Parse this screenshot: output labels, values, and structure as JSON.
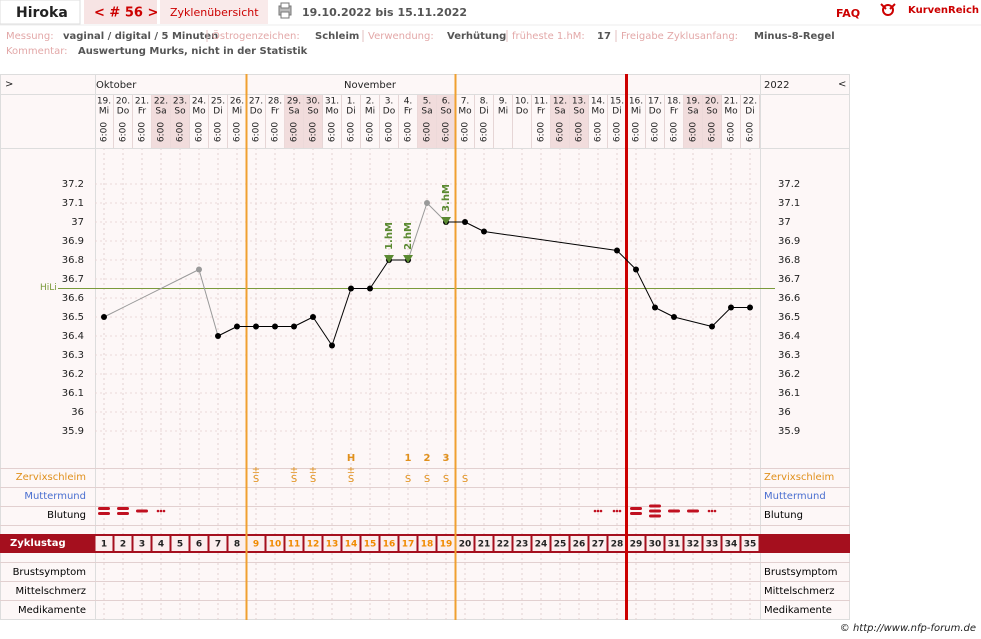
{
  "header": {
    "name": "Hiroka",
    "cycle": "< # 56 >",
    "overview": "Zyklenübersicht",
    "range": "19.10.2022 bis 15.11.2022",
    "faq": "FAQ",
    "brand": "KurvenReich"
  },
  "info": {
    "items": [
      {
        "label": "Messung:",
        "value": "vaginal / digital / 5 Minuten"
      },
      {
        "label": "Östrogenzeichen:",
        "value": "Schleim"
      },
      {
        "label": "Verwendung:",
        "value": "Verhütung"
      },
      {
        "label": "früheste 1.hM:",
        "value": "17"
      },
      {
        "label": "Freigabe Zyklusanfang:",
        "value": "Minus-8-Regel"
      }
    ],
    "comment_label": "Kommentar:",
    "comment": "Auswertung Murks, nicht in der Statistik"
  },
  "chart_data": {
    "type": "line",
    "nav_left": ">",
    "nav_right": "<",
    "year": "2022",
    "months": [
      "Oktober",
      "November"
    ],
    "categories": [
      "19.",
      "20.",
      "21.",
      "22.",
      "23.",
      "24.",
      "25.",
      "26.",
      "27.",
      "28.",
      "29.",
      "30.",
      "31.",
      "1.",
      "2.",
      "3.",
      "4.",
      "5.",
      "6.",
      "7.",
      "8.",
      "9.",
      "10.",
      "11.",
      "12.",
      "13.",
      "14.",
      "15.",
      "16.",
      "17.",
      "18.",
      "19.",
      "20.",
      "21.",
      "22."
    ],
    "weekdays": [
      "Mi",
      "Do",
      "Fr",
      "Sa",
      "So",
      "Mo",
      "Di",
      "Mi",
      "Do",
      "Fr",
      "Sa",
      "So",
      "Mo",
      "Di",
      "Mi",
      "Do",
      "Fr",
      "Sa",
      "So",
      "Mo",
      "Di",
      "Mi",
      "Do",
      "Fr",
      "Sa",
      "So",
      "Mo",
      "Di",
      "Mi",
      "Do",
      "Fr",
      "Sa",
      "So",
      "Mo",
      "Di"
    ],
    "times": [
      "6:00",
      "6:00",
      "6:00",
      "6:00",
      "6:00",
      "6:00",
      "6:00",
      "6:00",
      "6:00",
      "6:00",
      "6:00",
      "6:00",
      "6:00",
      "6:00",
      "6:00",
      "6:00",
      "6:00",
      "6:00",
      "6:00",
      "6:00",
      "6:00",
      null,
      null,
      "6:00",
      "6:00",
      "6:00",
      "6:00",
      "6:00",
      "6:00",
      "6:00",
      "6:00",
      "6:00",
      "6:00",
      "6:00",
      "6:00"
    ],
    "cycle_days": [
      1,
      2,
      3,
      4,
      5,
      6,
      7,
      8,
      9,
      10,
      11,
      12,
      13,
      14,
      15,
      16,
      17,
      18,
      19,
      20,
      21,
      22,
      23,
      24,
      25,
      26,
      27,
      28,
      29,
      30,
      31,
      32,
      33,
      34,
      35
    ],
    "values": [
      36.5,
      null,
      null,
      null,
      null,
      36.75,
      36.4,
      36.45,
      36.45,
      36.45,
      36.45,
      36.5,
      36.35,
      36.65,
      36.65,
      36.8,
      36.8,
      37.1,
      37.0,
      37.0,
      36.95,
      null,
      null,
      null,
      null,
      null,
      null,
      36.85,
      36.75,
      36.55,
      36.5,
      null,
      36.45,
      36.55,
      36.55
    ],
    "color": "#000000",
    "marker_colors": [
      "#000000",
      null,
      null,
      null,
      null,
      "#999999",
      "#000000",
      "#000000",
      "#000000",
      "#000000",
      "#000000",
      "#000000",
      "#000000",
      "#000000",
      "#000000",
      "#000000",
      "#000000",
      "#999999",
      "#000000",
      "#000000",
      "#000000",
      null,
      null,
      null,
      null,
      null,
      null,
      "#000000",
      "#000000",
      "#000000",
      "#000000",
      null,
      "#000000",
      "#000000",
      "#000000"
    ],
    "ylim": [
      35.8,
      37.4
    ],
    "yticks": [
      35.9,
      36,
      36.1,
      36.2,
      36.3,
      36.4,
      36.5,
      36.6,
      36.7,
      36.8,
      36.9,
      37,
      37.1,
      37.2
    ],
    "grid": true,
    "reference_lines": [
      {
        "label": "HiLi",
        "value": 36.65,
        "color": "#7a9a3a"
      }
    ],
    "annotations": [
      {
        "label": "1.hM",
        "cycle_day": 16
      },
      {
        "label": "2.hM",
        "cycle_day": 17
      },
      {
        "label": "3.hM",
        "cycle_day": 19
      }
    ],
    "annotation_color": "#5b8a32",
    "vlines": [
      {
        "after_day": 8,
        "color": "#f0a030"
      },
      {
        "after_day": 19,
        "color": "#f0a030"
      },
      {
        "after_day": 28,
        "color": "#cc0000"
      }
    ],
    "rows": [
      {
        "label": "Zervixschleim",
        "color": "#e0901c"
      },
      {
        "label": "Muttermund",
        "color": "#4a6fd0"
      },
      {
        "label": "Blutung",
        "color": "#000000"
      },
      {
        "label": "Zyklustag",
        "color": "#ffffff"
      },
      {
        "label": "Brustsymptom",
        "color": "#000000"
      },
      {
        "label": "Mittelschmerz",
        "color": "#000000"
      },
      {
        "label": "Medikamente",
        "color": "#000000"
      }
    ],
    "zervix": [
      null,
      null,
      null,
      null,
      null,
      null,
      null,
      null,
      "S",
      null,
      "S",
      "S",
      null,
      "S",
      null,
      null,
      "S",
      "S",
      "S",
      "S",
      null,
      null,
      null,
      null,
      null,
      null,
      null,
      null,
      null,
      null,
      null,
      null,
      null,
      null,
      null
    ],
    "zervix_top": [
      null,
      null,
      null,
      null,
      null,
      null,
      null,
      null,
      "±",
      null,
      "±",
      "±",
      null,
      "±",
      null,
      null,
      null,
      null,
      null,
      null,
      null,
      null,
      null,
      null,
      null,
      null,
      null,
      null,
      null,
      null,
      null,
      null,
      null,
      null,
      null
    ],
    "zervix_marks": [
      null,
      null,
      null,
      null,
      null,
      null,
      null,
      null,
      null,
      null,
      null,
      null,
      null,
      "H",
      null,
      null,
      "1",
      "2",
      "3",
      null,
      null,
      null,
      null,
      null,
      null,
      null,
      null,
      null,
      null,
      null,
      null,
      null,
      null,
      null,
      null
    ],
    "zervix_color": "#e0901c",
    "bleeding": [
      3,
      3,
      2,
      1,
      null,
      null,
      null,
      null,
      null,
      null,
      null,
      null,
      null,
      null,
      null,
      null,
      null,
      null,
      null,
      null,
      null,
      null,
      null,
      null,
      null,
      null,
      1,
      1,
      3,
      4,
      2,
      2,
      1,
      null,
      null
    ],
    "bleeding_color": "#c01020"
  },
  "footer": "© http://www.nfp-forum.de"
}
